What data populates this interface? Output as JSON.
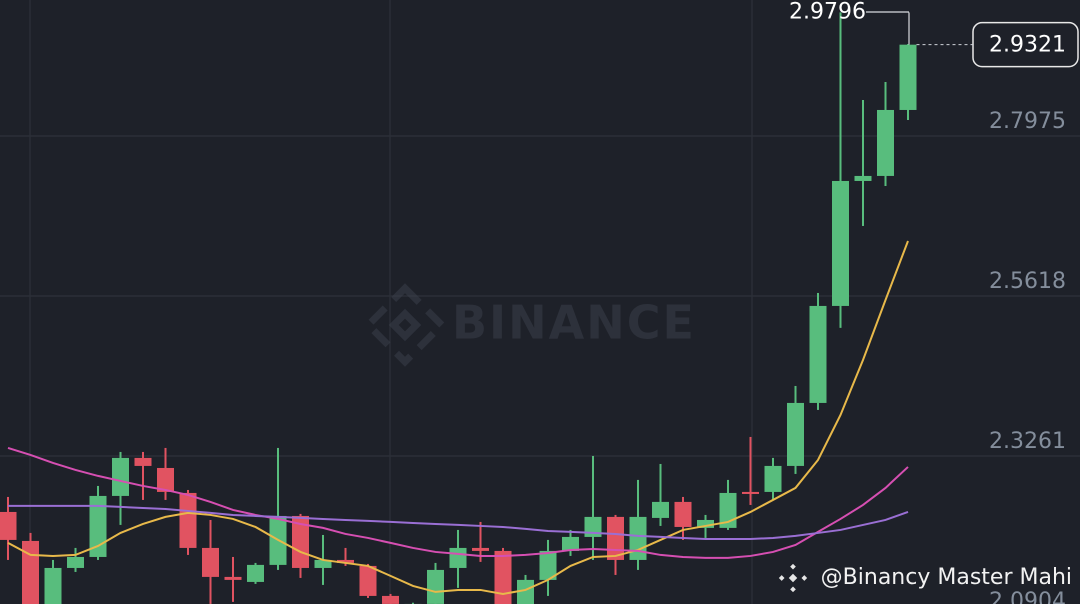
{
  "chart_data": {
    "type": "candlestick",
    "watermark": "BINANCE",
    "credit": "@Binancy Master Mahi",
    "high_marker": 2.9796,
    "last_price": 2.9321,
    "ylim": [
      2.1081,
      2.9979
    ],
    "yticks": [
      2.0904,
      2.3261,
      2.5618,
      2.7975
    ],
    "grid": true,
    "up_color": "#58bd7d",
    "down_color": "#e15361",
    "open": [
      2.2437,
      2.201,
      2.095,
      2.1612,
      2.1774,
      2.2673,
      2.3233,
      2.3085,
      2.2717,
      2.1907,
      2.148,
      2.1406,
      2.1657,
      2.2378,
      2.1612,
      2.173,
      2.1642,
      2.12,
      2.085,
      2.1082,
      2.1612,
      2.1907,
      2.1863,
      2.0994,
      2.1436,
      2.1863,
      2.2069,
      2.2364,
      2.173,
      2.2349,
      2.2585,
      2.2202,
      2.2202,
      2.2732,
      2.2732,
      2.3115,
      2.4043,
      2.5472,
      2.7313,
      2.7387,
      2.8359
    ],
    "high": [
      2.2658,
      2.2128,
      2.173,
      2.1907,
      2.282,
      2.3321,
      2.3321,
      2.338,
      2.2761,
      2.2319,
      2.1774,
      2.1686,
      2.338,
      2.2408,
      2.2098,
      2.1907,
      2.1671,
      2.1229,
      2.11,
      2.1686,
      2.2172,
      2.229,
      2.1907,
      2.1509,
      2.2025,
      2.2172,
      2.3262,
      2.2393,
      2.2909,
      2.3144,
      2.2658,
      2.2393,
      2.2909,
      2.3542,
      2.3233,
      2.4293,
      2.5663,
      2.9796,
      2.8506,
      2.8771,
      2.933
    ],
    "low": [
      2.173,
      2.08,
      2.085,
      2.1553,
      2.173,
      2.2246,
      2.2614,
      2.2614,
      2.1804,
      2.1082,
      2.1112,
      2.1377,
      2.1583,
      2.1465,
      2.1362,
      2.1642,
      2.117,
      2.0994,
      2.08,
      2.0994,
      2.1318,
      2.1701,
      2.092,
      2.092,
      2.12,
      2.1789,
      2.173,
      2.1509,
      2.1583,
      2.2231,
      2.2025,
      2.2054,
      2.2172,
      2.254,
      2.2614,
      2.2997,
      2.394,
      2.5148,
      2.665,
      2.7239,
      2.8211
    ],
    "close": [
      2.2025,
      2.095,
      2.1612,
      2.1774,
      2.2673,
      2.3233,
      2.3115,
      2.2732,
      2.1907,
      2.148,
      2.1436,
      2.1657,
      2.2378,
      2.1612,
      2.173,
      2.1686,
      2.12,
      2.1082,
      2.1082,
      2.1583,
      2.1907,
      2.1863,
      2.0994,
      2.1436,
      2.1863,
      2.2069,
      2.2364,
      2.173,
      2.2364,
      2.2585,
      2.2216,
      2.2319,
      2.2717,
      2.2702,
      2.3115,
      2.4043,
      2.5472,
      2.7313,
      2.7387,
      2.8359,
      2.9321
    ],
    "lines": [
      {
        "color": "#e8b94a",
        "values": [
          2.1981,
          2.1804,
          2.1789,
          2.1804,
          2.1936,
          2.2128,
          2.226,
          2.2364,
          2.2423,
          2.2393,
          2.2334,
          2.2216,
          2.2025,
          2.1848,
          2.173,
          2.1686,
          2.1642,
          2.1495,
          2.1347,
          2.1259,
          2.1288,
          2.1288,
          2.1229,
          2.1288,
          2.1436,
          2.1642,
          2.1774,
          2.1789,
          2.1877,
          2.2025,
          2.2172,
          2.2231,
          2.229,
          2.2437,
          2.2614,
          2.2791,
          2.3203,
          2.3866,
          2.4676,
          2.556,
          2.6429
        ]
      },
      {
        "color": "#d64fb2",
        "values": [
          2.338,
          2.3277,
          2.3159,
          2.3056,
          2.2968,
          2.2894,
          2.282,
          2.2761,
          2.2688,
          2.2585,
          2.2467,
          2.2393,
          2.2334,
          2.226,
          2.2202,
          2.2113,
          2.2054,
          2.1981,
          2.1907,
          2.1848,
          2.1819,
          2.1789,
          2.1789,
          2.1804,
          2.1833,
          2.1877,
          2.1892,
          2.1877,
          2.1863,
          2.1804,
          2.1774,
          2.176,
          2.176,
          2.1789,
          2.1848,
          2.1951,
          2.2143,
          2.2334,
          2.254,
          2.2791,
          2.31
        ]
      },
      {
        "color": "#9a6fd4",
        "values": [
          2.2526,
          2.2526,
          2.2526,
          2.2526,
          2.2526,
          2.2511,
          2.2496,
          2.2481,
          2.2452,
          2.2423,
          2.2393,
          2.2378,
          2.2364,
          2.2349,
          2.2334,
          2.2319,
          2.2305,
          2.229,
          2.2275,
          2.226,
          2.2246,
          2.2231,
          2.2216,
          2.2187,
          2.2157,
          2.2143,
          2.2128,
          2.2113,
          2.2084,
          2.2069,
          2.2054,
          2.2039,
          2.2039,
          2.2039,
          2.2054,
          2.2084,
          2.2128,
          2.2172,
          2.2246,
          2.2319,
          2.2437
        ]
      }
    ]
  }
}
